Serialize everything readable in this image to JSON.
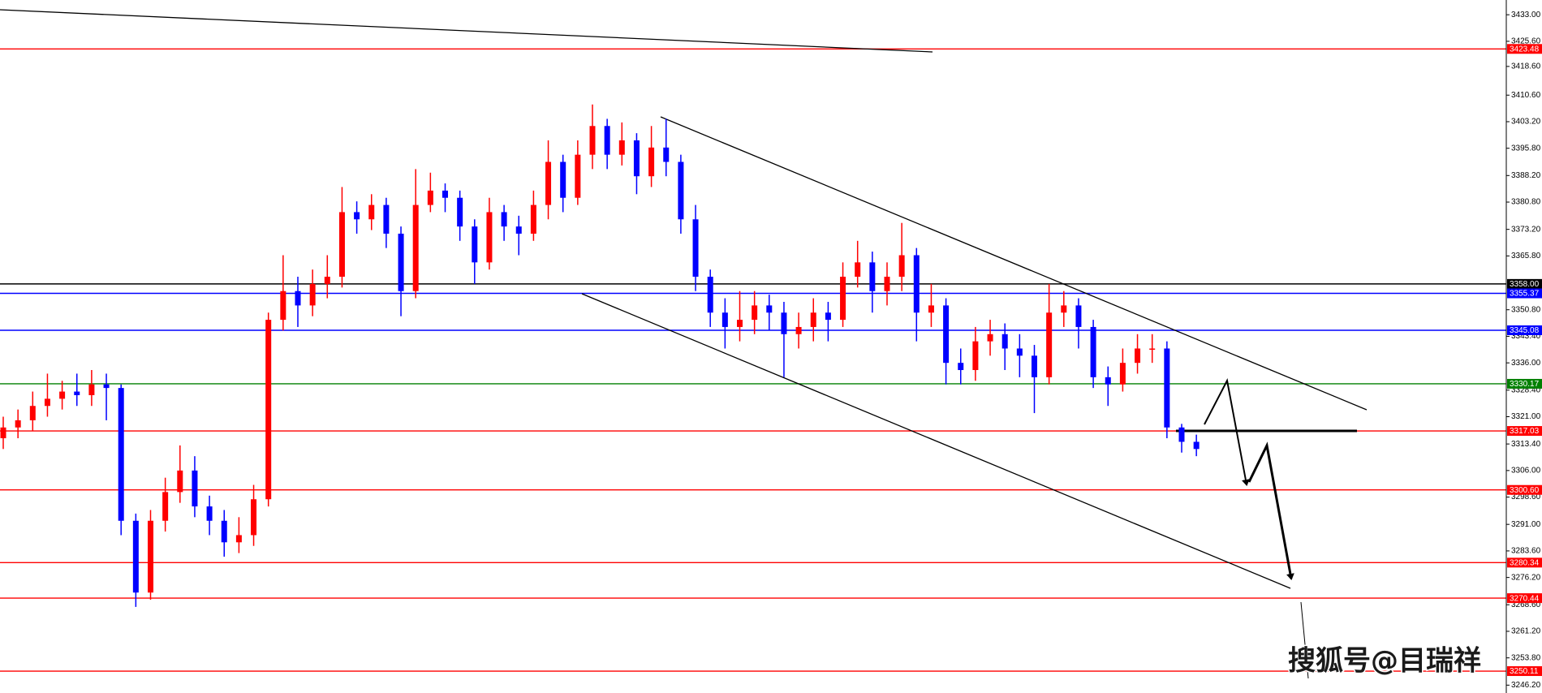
{
  "chart_data": {
    "type": "candlestick",
    "ylim": [
      3244.01,
      3437.11
    ],
    "yticks": [
      {
        "value": 3433,
        "label": "3433.00"
      },
      {
        "value": 3425.6,
        "label": "3425.60"
      },
      {
        "value": 3418.6,
        "label": "3418.60"
      },
      {
        "value": 3410.6,
        "label": "3410.60"
      },
      {
        "value": 3403.2,
        "label": "3403.20"
      },
      {
        "value": 3395.8,
        "label": "3395.80"
      },
      {
        "value": 3388.2,
        "label": "3388.20"
      },
      {
        "value": 3380.8,
        "label": "3380.80"
      },
      {
        "value": 3373.2,
        "label": "3373.20"
      },
      {
        "value": 3365.8,
        "label": "3365.80"
      },
      {
        "value": 3350.8,
        "label": "3350.80"
      },
      {
        "value": 3343.4,
        "label": "3343.40"
      },
      {
        "value": 3336,
        "label": "3336.00"
      },
      {
        "value": 3328.4,
        "label": "3328.40"
      },
      {
        "value": 3321,
        "label": "3321.00"
      },
      {
        "value": 3313.4,
        "label": "3313.40"
      },
      {
        "value": 3306,
        "label": "3306.00"
      },
      {
        "value": 3298.6,
        "label": "3298.60"
      },
      {
        "value": 3291,
        "label": "3291.00"
      },
      {
        "value": 3283.6,
        "label": "3283.60"
      },
      {
        "value": 3276.2,
        "label": "3276.20"
      },
      {
        "value": 3268.6,
        "label": "3268.60"
      },
      {
        "value": 3261.2,
        "label": "3261.20"
      },
      {
        "value": 3253.8,
        "label": "3253.80"
      },
      {
        "value": 3246.2,
        "label": "3246.20"
      }
    ],
    "up_color": "#ff0000",
    "down_color": "#0000ff",
    "open": [
      3315,
      3318,
      3320,
      3324,
      3326,
      3328,
      3327,
      3330,
      3329,
      3292,
      3272,
      3292,
      3300,
      3306,
      3296,
      3292,
      3286,
      3288,
      3298,
      3348,
      3356,
      3352,
      3358,
      3360,
      3378,
      3376,
      3380,
      3372,
      3356,
      3380,
      3384,
      3382,
      3374,
      3364,
      3378,
      3374,
      3372,
      3380,
      3392,
      3382,
      3394,
      3402,
      3394,
      3398,
      3388,
      3396,
      3392,
      3376,
      3360,
      3350,
      3346,
      3348,
      3352,
      3350,
      3344,
      3346,
      3350,
      3348,
      3360,
      3364,
      3356,
      3360,
      3366,
      3350,
      3352,
      3336,
      3334,
      3342,
      3344,
      3340,
      3338,
      3332,
      3350,
      3352,
      3346,
      3332,
      3330,
      3336,
      3340,
      3340,
      3318,
      3314
    ],
    "high": [
      3321,
      3323,
      3328,
      3333,
      3331,
      3333,
      3334,
      3333,
      3330,
      3294,
      3295,
      3304,
      3313,
      3310,
      3299,
      3295,
      3293,
      3302,
      3350,
      3366,
      3360,
      3362,
      3366,
      3385,
      3381,
      3383,
      3382,
      3374,
      3390,
      3389,
      3386,
      3384,
      3376,
      3382,
      3380,
      3377,
      3384,
      3398,
      3394,
      3398,
      3408,
      3404,
      3403,
      3400,
      3402,
      3404,
      3394,
      3380,
      3362,
      3354,
      3356,
      3356,
      3355,
      3353,
      3350,
      3354,
      3353,
      3364,
      3370,
      3367,
      3364,
      3375,
      3368,
      3358,
      3354,
      3340,
      3346,
      3348,
      3347,
      3344,
      3341,
      3358,
      3356,
      3354,
      3348,
      3335,
      3340,
      3344,
      3344,
      3342,
      3319,
      3316
    ],
    "low": [
      3312,
      3315,
      3317,
      3321,
      3323,
      3324,
      3324,
      3320,
      3288,
      3268,
      3270,
      3289,
      3297,
      3293,
      3288,
      3282,
      3283,
      3285,
      3296,
      3345,
      3346,
      3349,
      3354,
      3357,
      3372,
      3373,
      3368,
      3349,
      3354,
      3378,
      3378,
      3370,
      3358,
      3362,
      3370,
      3366,
      3370,
      3376,
      3378,
      3380,
      3390,
      3390,
      3391,
      3383,
      3385,
      3388,
      3372,
      3356,
      3346,
      3340,
      3342,
      3344,
      3345,
      3332,
      3340,
      3342,
      3342,
      3346,
      3357,
      3350,
      3352,
      3356,
      3342,
      3346,
      3330,
      3330,
      3331,
      3338,
      3334,
      3332,
      3322,
      3330,
      3346,
      3340,
      3329,
      3324,
      3328,
      3333,
      3336,
      3315,
      3311,
      3310
    ],
    "close": [
      3318,
      3320,
      3324,
      3326,
      3328,
      3327,
      3330,
      3329,
      3292,
      3272,
      3292,
      3300,
      3306,
      3296,
      3292,
      3286,
      3288,
      3298,
      3348,
      3356,
      3352,
      3358,
      3360,
      3378,
      3376,
      3380,
      3372,
      3356,
      3380,
      3384,
      3382,
      3374,
      3364,
      3378,
      3374,
      3372,
      3380,
      3392,
      3382,
      3394,
      3402,
      3394,
      3398,
      3388,
      3396,
      3392,
      3376,
      3360,
      3350,
      3346,
      3348,
      3352,
      3350,
      3344,
      3346,
      3350,
      3348,
      3360,
      3364,
      3356,
      3360,
      3366,
      3350,
      3352,
      3336,
      3334,
      3342,
      3344,
      3340,
      3338,
      3332,
      3350,
      3352,
      3346,
      3332,
      3330,
      3336,
      3340,
      3340,
      3318,
      3314,
      3312
    ],
    "levels": [
      {
        "value": 3423.48,
        "color": "#ff0000"
      },
      {
        "value": 3358,
        "label": "3358.00",
        "color": "#000000"
      },
      {
        "value": 3355.37,
        "color": "#0000ff"
      },
      {
        "value": 3345.08,
        "color": "#0000ff"
      },
      {
        "value": 3330.17,
        "color": "#008000"
      },
      {
        "value": 3317.03,
        "color": "#ff0000"
      },
      {
        "value": 3300.6,
        "label": "3300.60",
        "color": "#ff0000"
      },
      {
        "value": 3280.34,
        "color": "#ff0000"
      },
      {
        "value": 3270.44,
        "color": "#ff0000"
      },
      {
        "value": 3250.11,
        "color": "#ff0000"
      }
    ],
    "watermark": "搜狐号@目瑞祥"
  }
}
